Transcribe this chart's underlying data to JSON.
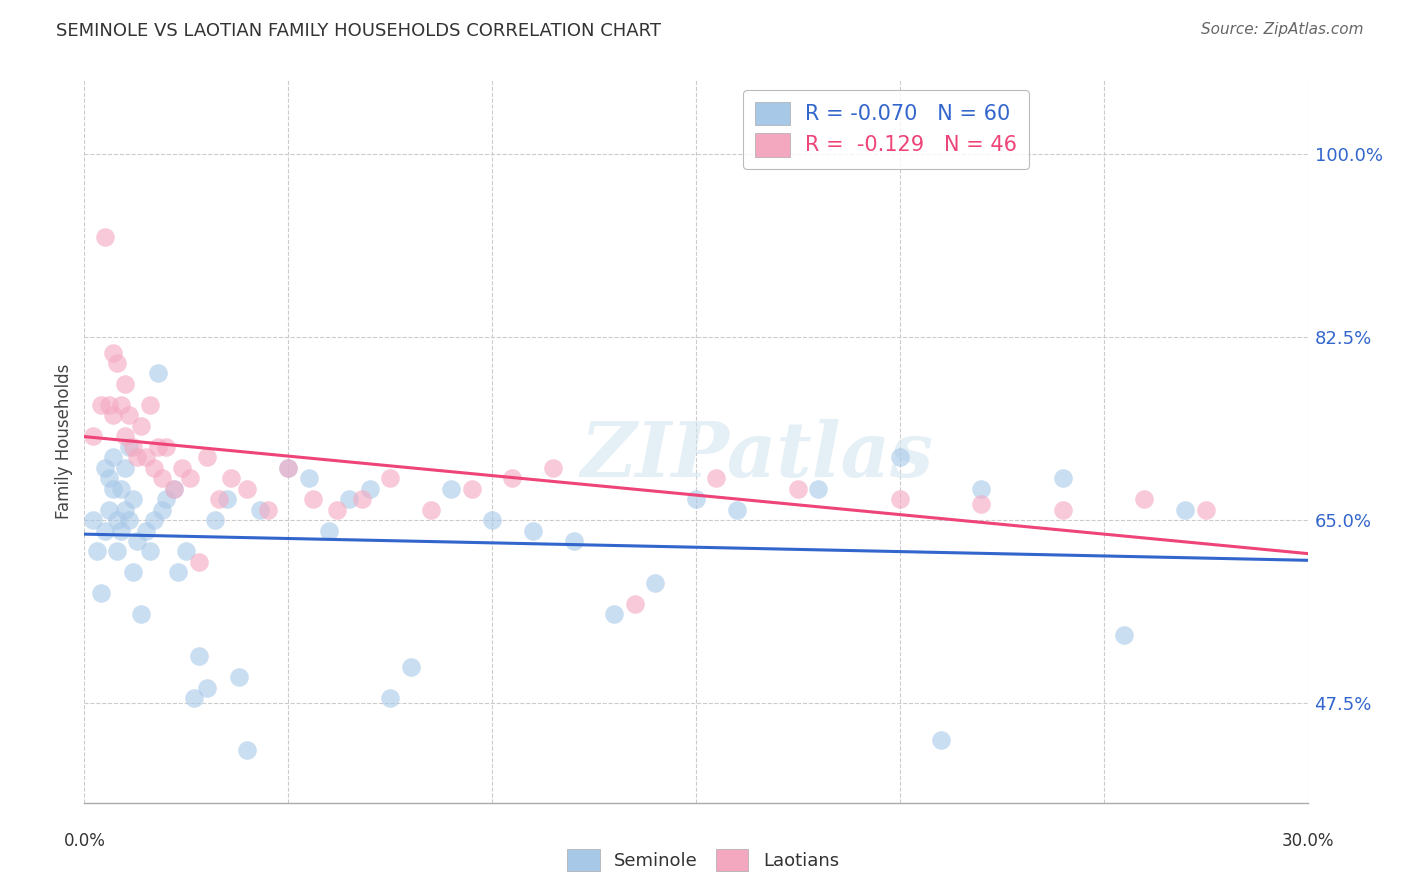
{
  "title": "SEMINOLE VS LAOTIAN FAMILY HOUSEHOLDS CORRELATION CHART",
  "source": "Source: ZipAtlas.com",
  "ylabel": "Family Households",
  "y_ticks": [
    47.5,
    65.0,
    82.5,
    100.0
  ],
  "x_range": [
    0.0,
    0.3
  ],
  "y_range": [
    0.38,
    1.07
  ],
  "legend_blue_label": "R = -0.070   N = 60",
  "legend_pink_label": "R =  -0.129   N = 46",
  "blue_color": "#a8c8e8",
  "pink_color": "#f4a8c0",
  "blue_line_color": "#3366cc",
  "pink_line_color": "#ee4477",
  "watermark": "ZIPatlas",
  "seminole_x": [
    0.002,
    0.003,
    0.004,
    0.005,
    0.005,
    0.006,
    0.006,
    0.007,
    0.007,
    0.008,
    0.008,
    0.009,
    0.009,
    0.01,
    0.01,
    0.011,
    0.011,
    0.012,
    0.012,
    0.013,
    0.014,
    0.015,
    0.016,
    0.017,
    0.018,
    0.019,
    0.02,
    0.022,
    0.023,
    0.025,
    0.027,
    0.028,
    0.03,
    0.032,
    0.035,
    0.038,
    0.04,
    0.043,
    0.05,
    0.055,
    0.06,
    0.065,
    0.07,
    0.075,
    0.08,
    0.09,
    0.1,
    0.11,
    0.12,
    0.13,
    0.14,
    0.15,
    0.16,
    0.18,
    0.2,
    0.21,
    0.22,
    0.24,
    0.255,
    0.27
  ],
  "seminole_y": [
    0.65,
    0.62,
    0.58,
    0.7,
    0.64,
    0.69,
    0.66,
    0.68,
    0.71,
    0.65,
    0.62,
    0.68,
    0.64,
    0.66,
    0.7,
    0.72,
    0.65,
    0.67,
    0.6,
    0.63,
    0.56,
    0.64,
    0.62,
    0.65,
    0.79,
    0.66,
    0.67,
    0.68,
    0.6,
    0.62,
    0.48,
    0.52,
    0.49,
    0.65,
    0.67,
    0.5,
    0.43,
    0.66,
    0.7,
    0.69,
    0.64,
    0.67,
    0.68,
    0.48,
    0.51,
    0.68,
    0.65,
    0.64,
    0.63,
    0.56,
    0.59,
    0.67,
    0.66,
    0.68,
    0.71,
    0.44,
    0.68,
    0.69,
    0.54,
    0.66
  ],
  "laotian_x": [
    0.002,
    0.004,
    0.005,
    0.006,
    0.007,
    0.007,
    0.008,
    0.009,
    0.01,
    0.01,
    0.011,
    0.012,
    0.013,
    0.014,
    0.015,
    0.016,
    0.017,
    0.018,
    0.019,
    0.02,
    0.022,
    0.024,
    0.026,
    0.028,
    0.03,
    0.033,
    0.036,
    0.04,
    0.045,
    0.05,
    0.056,
    0.062,
    0.068,
    0.075,
    0.085,
    0.095,
    0.105,
    0.115,
    0.135,
    0.155,
    0.175,
    0.2,
    0.22,
    0.24,
    0.26,
    0.275
  ],
  "laotian_y": [
    0.73,
    0.76,
    0.92,
    0.76,
    0.75,
    0.81,
    0.8,
    0.76,
    0.78,
    0.73,
    0.75,
    0.72,
    0.71,
    0.74,
    0.71,
    0.76,
    0.7,
    0.72,
    0.69,
    0.72,
    0.68,
    0.7,
    0.69,
    0.61,
    0.71,
    0.67,
    0.69,
    0.68,
    0.66,
    0.7,
    0.67,
    0.66,
    0.67,
    0.69,
    0.66,
    0.68,
    0.69,
    0.7,
    0.57,
    0.69,
    0.68,
    0.67,
    0.665,
    0.66,
    0.67,
    0.66
  ]
}
